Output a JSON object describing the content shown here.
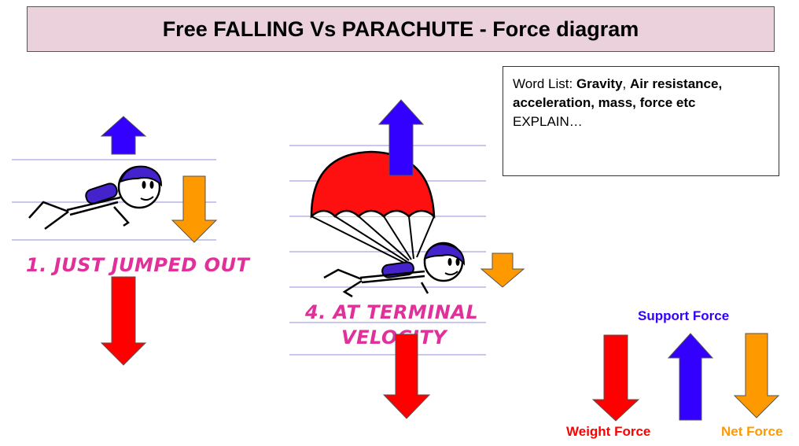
{
  "title": "Free FALLING Vs PARACHUTE - Force diagram",
  "word_list": {
    "label": "Word List:",
    "term1": "Gravity",
    "sep1": ",",
    "term2": "Air resistance,",
    "line2": "acceleration, mass, force etc",
    "line3": "EXPLAIN…"
  },
  "panel1": {
    "caption": "1. JUST JUMPED OUT"
  },
  "panel2": {
    "caption_line1": "4. AT TERMINAL",
    "caption_line2": "VELOCITY"
  },
  "legend": {
    "support": "Support Force",
    "weight": "Weight Force",
    "net": "Net Force"
  },
  "colors": {
    "support": "#3300ff",
    "weight": "#ff0000",
    "net": "#ff9900",
    "caption": "#e0309a",
    "title_bg": "#ead1dc"
  }
}
